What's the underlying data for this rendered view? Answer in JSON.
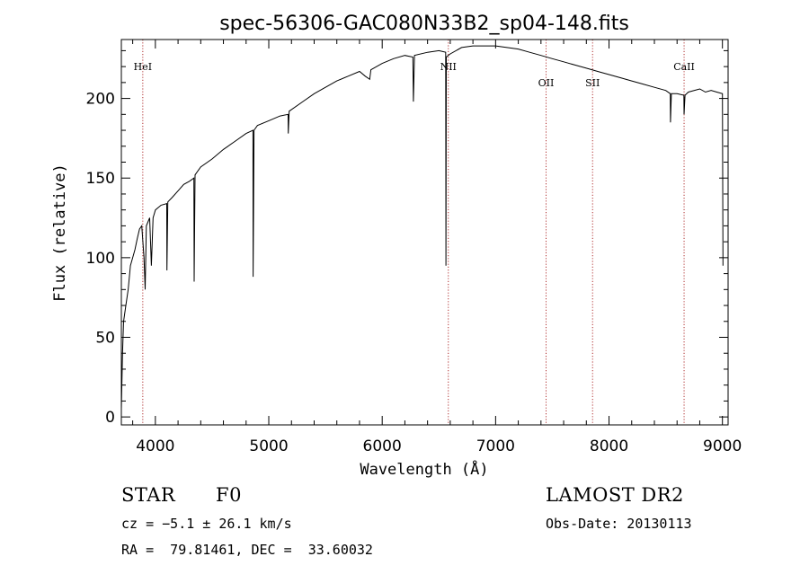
{
  "chart_data": {
    "type": "line",
    "title": "spec-56306-GAC080N33B2_sp04-148.fits",
    "xlabel": "Wavelength (Å)",
    "ylabel": "Flux (relative)",
    "xlim": [
      3700,
      9050
    ],
    "ylim": [
      -5,
      237
    ],
    "xticks": [
      4000,
      5000,
      6000,
      7000,
      8000,
      9000
    ],
    "yticks": [
      0,
      50,
      100,
      150,
      200
    ],
    "grid": false,
    "series": [
      {
        "points": [
          [
            3700,
            5
          ],
          [
            3710,
            40
          ],
          [
            3720,
            60
          ],
          [
            3740,
            70
          ],
          [
            3760,
            80
          ],
          [
            3780,
            95
          ],
          [
            3800,
            100
          ],
          [
            3820,
            105
          ],
          [
            3840,
            112
          ],
          [
            3860,
            118
          ],
          [
            3880,
            120
          ],
          [
            3900,
            100
          ],
          [
            3910,
            80
          ],
          [
            3920,
            120
          ],
          [
            3950,
            125
          ],
          [
            3965,
            95
          ],
          [
            3980,
            125
          ],
          [
            4000,
            130
          ],
          [
            4050,
            133
          ],
          [
            4100,
            134
          ],
          [
            4102,
            92
          ],
          [
            4110,
            135
          ],
          [
            4150,
            138
          ],
          [
            4200,
            142
          ],
          [
            4250,
            146
          ],
          [
            4300,
            148
          ],
          [
            4340,
            150
          ],
          [
            4342,
            85
          ],
          [
            4350,
            152
          ],
          [
            4400,
            157
          ],
          [
            4500,
            162
          ],
          [
            4600,
            168
          ],
          [
            4700,
            173
          ],
          [
            4800,
            178
          ],
          [
            4860,
            180
          ],
          [
            4862,
            88
          ],
          [
            4870,
            180
          ],
          [
            4900,
            183
          ],
          [
            5000,
            186
          ],
          [
            5100,
            189
          ],
          [
            5170,
            190
          ],
          [
            5172,
            178
          ],
          [
            5180,
            192
          ],
          [
            5300,
            198
          ],
          [
            5400,
            203
          ],
          [
            5500,
            207
          ],
          [
            5600,
            211
          ],
          [
            5700,
            214
          ],
          [
            5800,
            217
          ],
          [
            5850,
            214
          ],
          [
            5890,
            212
          ],
          [
            5900,
            218
          ],
          [
            6000,
            222
          ],
          [
            6100,
            225
          ],
          [
            6200,
            227
          ],
          [
            6270,
            226
          ],
          [
            6275,
            198
          ],
          [
            6285,
            227
          ],
          [
            6400,
            229
          ],
          [
            6500,
            230
          ],
          [
            6560,
            229
          ],
          [
            6562,
            95
          ],
          [
            6565,
            226
          ],
          [
            6600,
            228
          ],
          [
            6700,
            232
          ],
          [
            6800,
            233
          ],
          [
            6900,
            233
          ],
          [
            7000,
            233
          ],
          [
            7100,
            232
          ],
          [
            7200,
            231
          ],
          [
            7300,
            229
          ],
          [
            7400,
            227
          ],
          [
            7500,
            225
          ],
          [
            7600,
            223
          ],
          [
            7700,
            221
          ],
          [
            7800,
            219
          ],
          [
            7900,
            217
          ],
          [
            8000,
            215
          ],
          [
            8100,
            213
          ],
          [
            8200,
            211
          ],
          [
            8300,
            209
          ],
          [
            8400,
            207
          ],
          [
            8500,
            205
          ],
          [
            8540,
            203
          ],
          [
            8542,
            185
          ],
          [
            8550,
            203
          ],
          [
            8600,
            203
          ],
          [
            8660,
            202
          ],
          [
            8662,
            190
          ],
          [
            8670,
            202
          ],
          [
            8700,
            204
          ],
          [
            8800,
            206
          ],
          [
            8850,
            204
          ],
          [
            8900,
            205
          ],
          [
            8950,
            204
          ],
          [
            9000,
            203
          ],
          [
            9005,
            95
          ]
        ]
      }
    ],
    "lines": [
      {
        "label": "HeI",
        "x": 3889,
        "label_side": "top"
      },
      {
        "label": "NII",
        "x": 6583,
        "label_side": "top"
      },
      {
        "label": "OII",
        "x": 7445,
        "label_side": "lower"
      },
      {
        "label": "SII",
        "x": 7855,
        "label_side": "lower"
      },
      {
        "label": "CaII",
        "x": 8662,
        "label_side": "top"
      }
    ]
  },
  "info": {
    "class_label": "STAR",
    "subclass_label": "F0",
    "survey": "LAMOST DR2",
    "cz_line": "cz = −5.1 ± 26.1 km/s",
    "obs_date_line": "Obs-Date: 20130113",
    "radec_line": "RA =  79.81461, DEC =  33.60032"
  }
}
